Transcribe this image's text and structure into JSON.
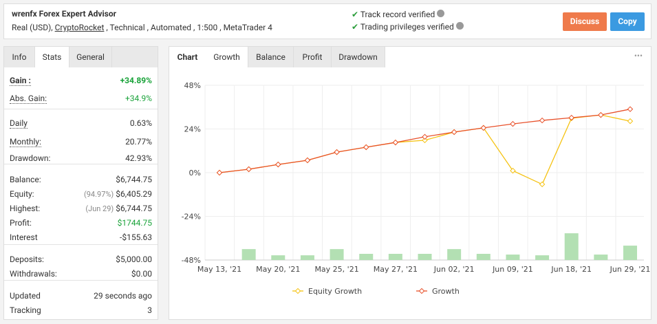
{
  "header": {
    "title": "wrenfx Forex Expert Advisor",
    "account": "Real (USD),",
    "broker": "CryptoRocket",
    "details": ", Technical , Automated , 1:500 , MetaTrader 4",
    "verified": [
      "Track record verified",
      "Trading privileges verified"
    ],
    "buttons": [
      "Discuss",
      "Copy"
    ]
  },
  "left_tabs": {
    "items": [
      "Info",
      "Stats",
      "General"
    ],
    "active": 1
  },
  "stats": [
    [
      {
        "label": "Gain :",
        "value": "+34.89%",
        "green": true,
        "bold": true,
        "underline": true
      },
      {
        "label": "Abs. Gain:",
        "value": "+34.9%",
        "green": true,
        "underline": true
      }
    ],
    [
      {
        "label": "Daily",
        "value": "0.63%",
        "underline": true
      },
      {
        "label": "Monthly:",
        "value": "20.77%",
        "underline": true
      },
      {
        "label": "Drawdown:",
        "value": "42.93%"
      }
    ],
    [
      {
        "label": "Balance:",
        "value": "$6,744.75"
      },
      {
        "label": "Equity:",
        "note": "(94.97%)",
        "value": "$6,405.29"
      },
      {
        "label": "Highest:",
        "note": "(Jun 29)",
        "value": "$6,744.75"
      },
      {
        "label": "Profit:",
        "value": "$1744.75",
        "green": true
      },
      {
        "label": "Interest",
        "value": "-$155.63"
      }
    ],
    [
      {
        "label": "Deposits:",
        "value": "$5,000.00"
      },
      {
        "label": "Withdrawals:",
        "value": "$0.00"
      }
    ],
    [
      {
        "label": "Updated",
        "value": "29 seconds ago"
      },
      {
        "label": "Tracking",
        "value": "3"
      }
    ]
  ],
  "chart_tabs": {
    "label": "Chart",
    "items": [
      "Growth",
      "Balance",
      "Profit",
      "Drawdown"
    ],
    "active": 0,
    "menu": "•••"
  },
  "chart_data": {
    "type": "line",
    "categories": [
      "May 13, '21",
      null,
      "May 20, '21",
      null,
      "May 25, '21",
      null,
      "May 27, '21",
      null,
      "Jun 02, '21",
      null,
      "Jun 09, '21",
      null,
      "Jun 18, '21",
      null,
      "Jun 29, '21"
    ],
    "series": [
      {
        "name": "Equity Growth",
        "color": "#f5c211",
        "values": [
          0,
          1.9,
          4.5,
          6.8,
          11.3,
          14,
          16.6,
          17.8,
          22.3,
          24.6,
          1.1,
          -6.4,
          29.9,
          31.7,
          28.3
        ]
      },
      {
        "name": "Growth",
        "color": "#e8502a",
        "values": [
          0,
          1.9,
          4.5,
          6.8,
          11.3,
          14,
          16.6,
          19.7,
          22.3,
          24.6,
          26.8,
          28.7,
          30.2,
          31.7,
          34.89
        ]
      }
    ],
    "bars": {
      "color": "#b3e0b3",
      "values": [
        null,
        6.0,
        2.6,
        2.6,
        6.0,
        3.4,
        3.4,
        3.4,
        6.0,
        3.4,
        3.0,
        2.6,
        14.7,
        3.0,
        7.9
      ]
    },
    "ylim": [
      -48,
      48
    ],
    "yticks": [
      {
        "value": 48,
        "label": "48%"
      },
      {
        "value": 24,
        "label": "24%"
      },
      {
        "value": 0,
        "label": "0%"
      },
      {
        "value": -24,
        "label": "-24%"
      },
      {
        "value": -48,
        "label": "-48%"
      }
    ],
    "grid": true
  }
}
